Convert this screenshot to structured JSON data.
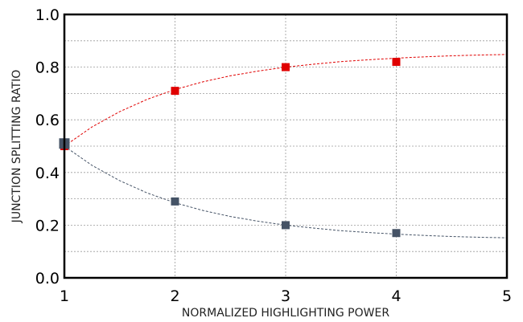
{
  "chart_data": {
    "type": "scatter",
    "title": "",
    "xlabel": "NORMALIZED HIGHLIGHTING POWER",
    "ylabel": "JUNCTION SPLITTING RATIO",
    "xlim": [
      1,
      5
    ],
    "ylim": [
      0.0,
      1.0
    ],
    "x_ticks": [
      "1",
      "2",
      "3",
      "4",
      "5"
    ],
    "y_ticks": [
      "0.0",
      "0.2",
      "0.4",
      "0.6",
      "0.8",
      "1.0"
    ],
    "grid": true,
    "legend": "none",
    "series": [
      {
        "color": "#e00000",
        "marker": "square",
        "points": [
          {
            "x": 1,
            "y": 0.5
          },
          {
            "x": 2,
            "y": 0.71
          },
          {
            "x": 3,
            "y": 0.8
          },
          {
            "x": 4,
            "y": 0.82
          }
        ],
        "fit": [
          [
            1,
            0.5
          ],
          [
            1.25,
            0.573
          ],
          [
            1.5,
            0.631
          ],
          [
            1.75,
            0.678
          ],
          [
            2,
            0.715
          ],
          [
            2.25,
            0.744
          ],
          [
            2.5,
            0.767
          ],
          [
            2.75,
            0.785
          ],
          [
            3,
            0.8
          ],
          [
            3.25,
            0.811
          ],
          [
            3.5,
            0.821
          ],
          [
            3.75,
            0.828
          ],
          [
            4,
            0.834
          ],
          [
            4.25,
            0.839
          ],
          [
            4.5,
            0.843
          ],
          [
            4.75,
            0.846
          ],
          [
            5,
            0.848
          ]
        ]
      },
      {
        "color": "#455366",
        "marker": "square",
        "points": [
          {
            "x": 1,
            "y": 0.51
          },
          {
            "x": 2,
            "y": 0.29
          },
          {
            "x": 3,
            "y": 0.2
          },
          {
            "x": 4,
            "y": 0.17
          }
        ],
        "fit": [
          [
            1,
            0.5
          ],
          [
            1.25,
            0.427
          ],
          [
            1.5,
            0.369
          ],
          [
            1.75,
            0.322
          ],
          [
            2,
            0.285
          ],
          [
            2.25,
            0.256
          ],
          [
            2.5,
            0.233
          ],
          [
            2.75,
            0.215
          ],
          [
            3,
            0.2
          ],
          [
            3.25,
            0.189
          ],
          [
            3.5,
            0.179
          ],
          [
            3.75,
            0.172
          ],
          [
            4,
            0.166
          ],
          [
            4.25,
            0.161
          ],
          [
            4.5,
            0.157
          ],
          [
            4.75,
            0.154
          ],
          [
            5,
            0.152
          ]
        ]
      }
    ]
  }
}
